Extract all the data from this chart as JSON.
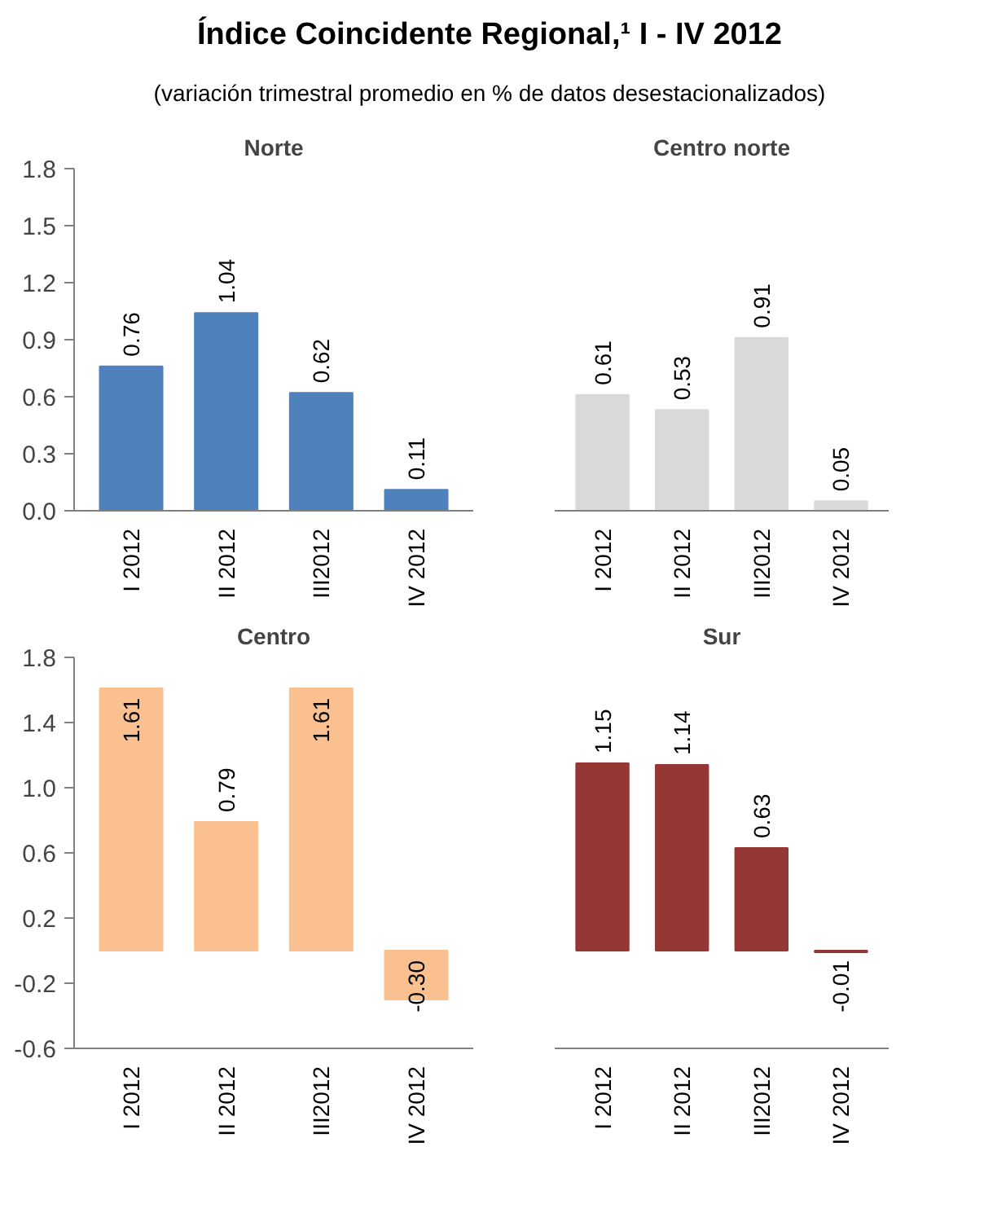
{
  "chart_data": [
    {
      "type": "other",
      "title": "Índice Coincidente Regional,¹ I - IV 2012",
      "subtitle": "(variación trimestral promedio en % de datos desestacionalizados)"
    },
    {
      "type": "bar",
      "title": "Norte",
      "categories": [
        "I 2012",
        "II 2012",
        "III2012",
        "IV 2012"
      ],
      "values": [
        0.76,
        1.04,
        0.62,
        0.11
      ],
      "value_labels": [
        "0.76",
        "1.04",
        "0.62",
        "0.11"
      ],
      "color": "#4f81bd",
      "ylim": [
        0,
        1.8
      ],
      "yticks": [
        {
          "value": 0,
          "label": "0.0"
        },
        0.3,
        0.6,
        0.9,
        1.2,
        1.5,
        1.8
      ],
      "grid": false
    },
    {
      "type": "bar",
      "title": "Centro norte",
      "categories": [
        "I 2012",
        "II 2012",
        "III2012",
        "IV 2012"
      ],
      "values": [
        0.61,
        0.53,
        0.91,
        0.05
      ],
      "value_labels": [
        "0.61",
        "0.53",
        "0.91",
        "0.05"
      ],
      "color": "#d9d9d9",
      "ylim": [
        0,
        1.8
      ],
      "tick_labels": "x",
      "grid": false
    },
    {
      "type": "bar",
      "title": "Centro",
      "categories": [
        "I 2012",
        "II 2012",
        "III2012",
        "IV 2012"
      ],
      "values": [
        1.61,
        0.79,
        1.61,
        -0.3
      ],
      "value_labels": [
        "1.61",
        "0.79",
        "1.61",
        "-0.30"
      ],
      "color": "#fac090",
      "ylim": [
        -0.6,
        1.8
      ],
      "yticks": [
        -0.6,
        -0.2,
        0.2,
        0.6,
        {
          "value": 1.0,
          "label": "1.0"
        },
        1.4,
        1.8
      ],
      "grid": false
    },
    {
      "type": "bar",
      "title": "Sur",
      "categories": [
        "I 2012",
        "II 2012",
        "III2012",
        "IV 2012"
      ],
      "values": [
        1.15,
        1.14,
        0.63,
        -0.01
      ],
      "value_labels": [
        "1.15",
        "1.14",
        "0.63",
        "-0.01"
      ],
      "color": "#953735",
      "ylim": [
        -0.6,
        1.8
      ],
      "tick_labels": "x",
      "grid": false
    }
  ]
}
